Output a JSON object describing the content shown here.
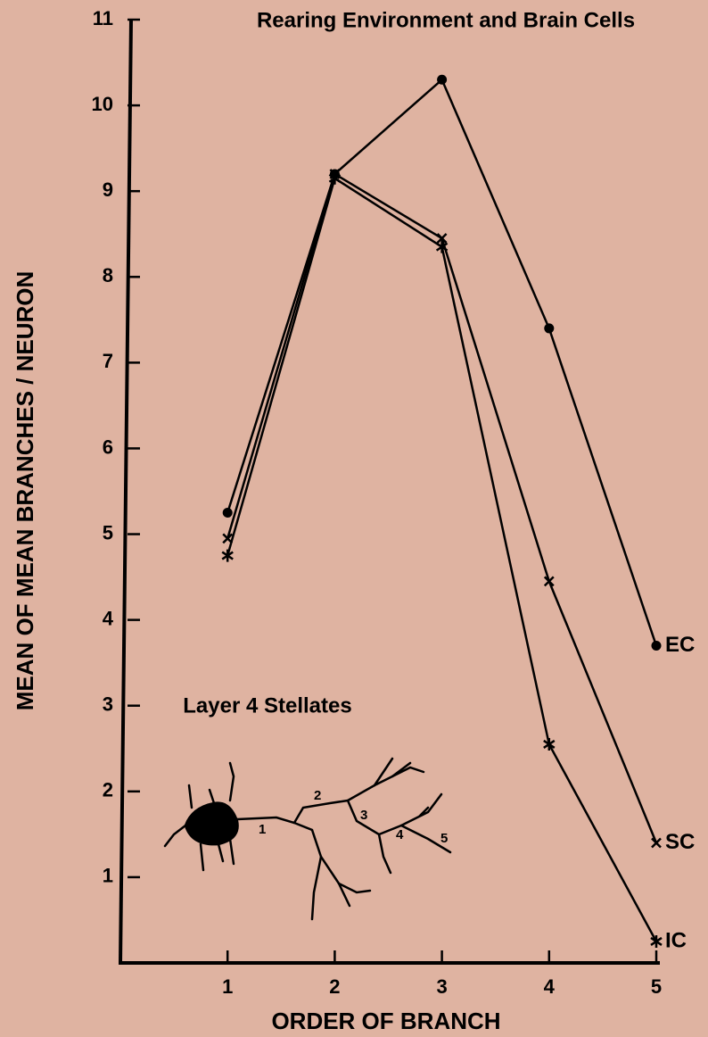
{
  "chart_data": {
    "type": "line",
    "title": "Rearing Environment and Brain Cells",
    "x_label": "ORDER OF BRANCH",
    "y_label": "MEAN OF MEAN BRANCHES / NEURON",
    "annotation": "Layer 4 Stellates",
    "neuron_labels": [
      "1",
      "2",
      "3",
      "4",
      "5"
    ],
    "x": [
      1,
      2,
      3,
      4,
      5
    ],
    "series": [
      {
        "name": "EC",
        "color": "#000000",
        "marker": "dot",
        "values": [
          5.25,
          9.2,
          10.3,
          7.4,
          3.7
        ]
      },
      {
        "name": "SC",
        "color": "#000000",
        "marker": "x",
        "values": [
          4.95,
          9.2,
          8.45,
          4.45,
          1.4
        ]
      },
      {
        "name": "IC",
        "color": "#000000",
        "marker": "star",
        "values": [
          4.75,
          9.15,
          8.35,
          2.55,
          0.25
        ]
      }
    ],
    "xlim": [
      0,
      5
    ],
    "xticks": [
      1,
      2,
      3,
      4,
      5
    ],
    "ylim": [
      0,
      11
    ],
    "yticks": [
      1,
      2,
      3,
      4,
      5,
      6,
      7,
      8,
      9,
      10,
      11
    ],
    "grid": false
  }
}
